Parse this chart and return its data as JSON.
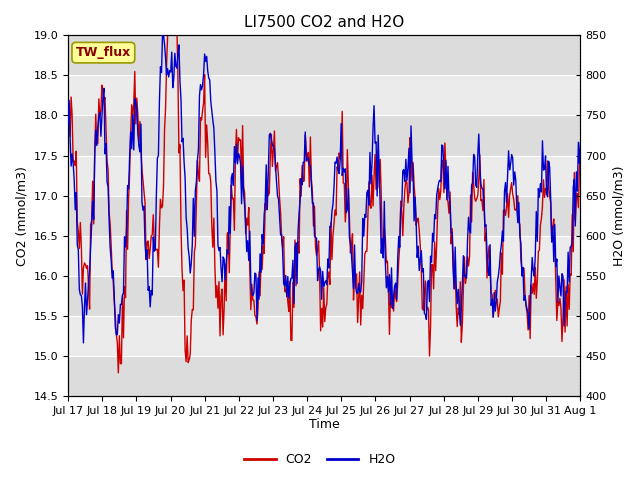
{
  "title": "LI7500 CO2 and H2O",
  "xlabel": "Time",
  "ylabel_left": "CO2 (mmol/m3)",
  "ylabel_right": "H2O (mmol/m3)",
  "ylim_left": [
    14.5,
    19.0
  ],
  "ylim_right": [
    400,
    850
  ],
  "yticks_left": [
    14.5,
    15.0,
    15.5,
    16.0,
    16.5,
    17.0,
    17.5,
    18.0,
    18.5,
    19.0
  ],
  "yticks_right": [
    400,
    450,
    500,
    550,
    600,
    650,
    700,
    750,
    800,
    850
  ],
  "xtick_labels": [
    "Jul 17",
    "Jul 18",
    "Jul 19",
    "Jul 20",
    "Jul 21",
    "Jul 22",
    "Jul 23",
    "Jul 24",
    "Jul 25",
    "Jul 26",
    "Jul 27",
    "Jul 28",
    "Jul 29",
    "Jul 30",
    "Jul 31",
    "Aug 1"
  ],
  "co2_color": "#CC0000",
  "h2o_color": "#0000CC",
  "background_color": "#FFFFFF",
  "plot_bg_color": "#F5F5F5",
  "stripe_light": "#EBEBEB",
  "stripe_dark": "#DCDCDC",
  "annotation_text": "TW_flux",
  "annotation_bg": "#FFFF99",
  "annotation_border": "#999900",
  "legend_co2": "CO2",
  "legend_h2o": "H2O",
  "title_fontsize": 11,
  "axis_fontsize": 9,
  "tick_fontsize": 8,
  "line_width": 1.0,
  "n_points": 500
}
